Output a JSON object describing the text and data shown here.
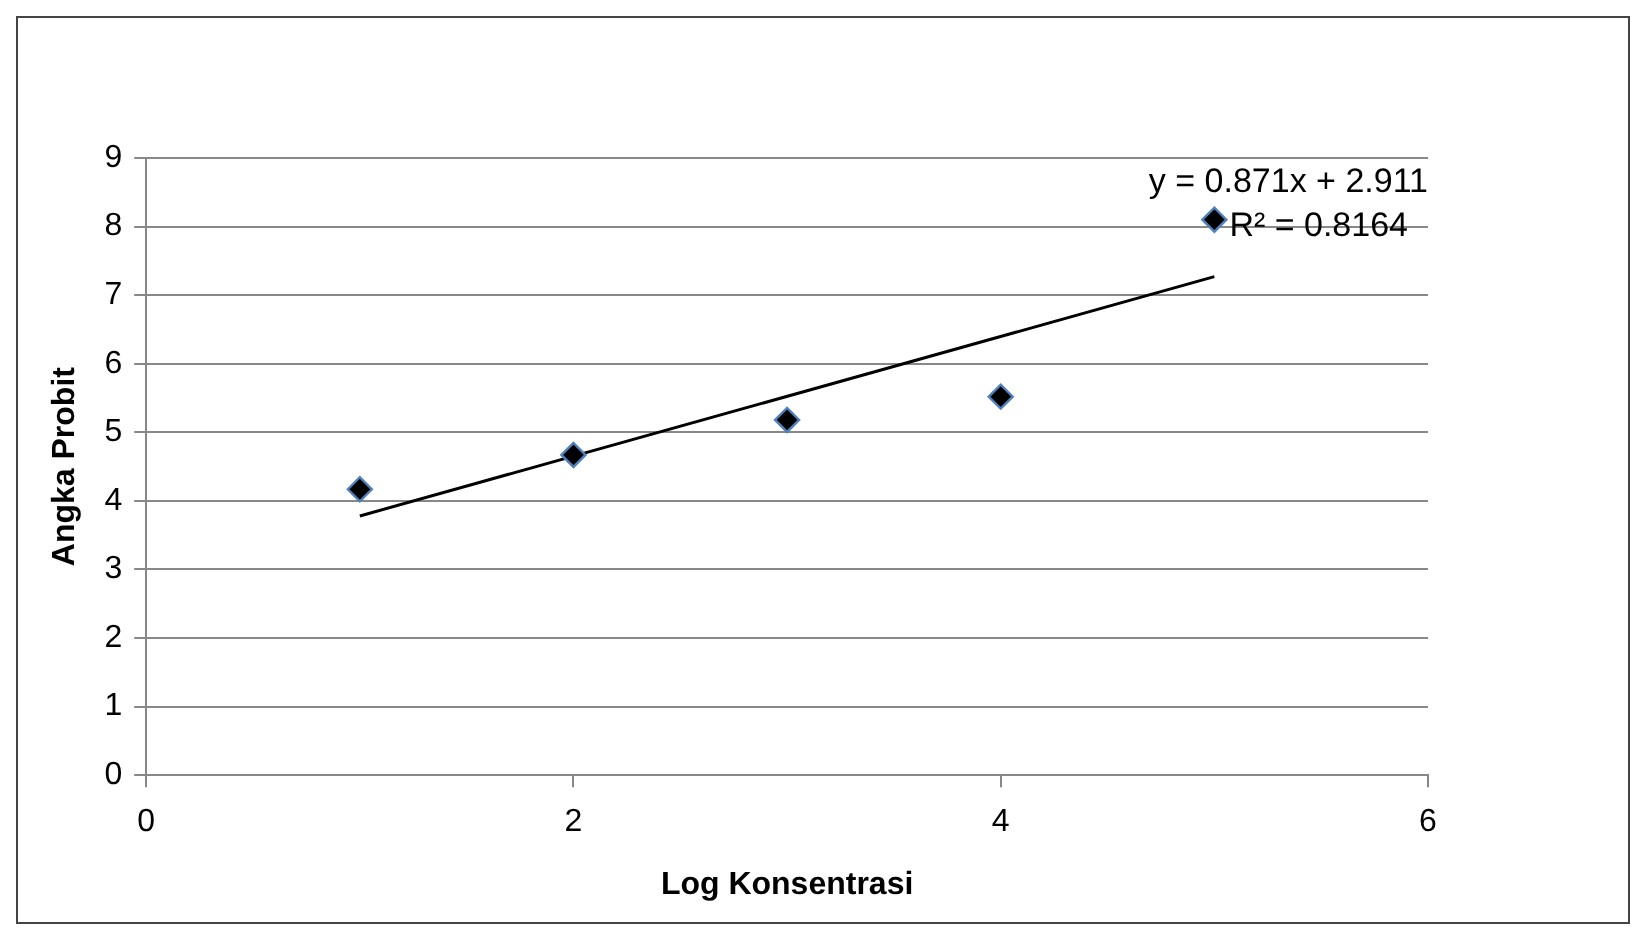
{
  "chart_data": {
    "type": "scatter",
    "xlabel": "Log Konsentrasi",
    "ylabel": "Angka Probit",
    "series": [
      {
        "type": "scatter",
        "color": "#000000",
        "x": [
          1,
          2,
          3,
          4,
          5
        ],
        "values": [
          4.17,
          4.67,
          5.18,
          5.52,
          8.1
        ]
      },
      {
        "type": "line",
        "color": "#000000",
        "x": [
          1,
          5
        ],
        "values": [
          3.78,
          7.27
        ],
        "marker": "none"
      }
    ],
    "xlim": [
      0,
      6
    ],
    "xticks": [
      0,
      2,
      4,
      6
    ],
    "ylim": [
      0,
      9
    ],
    "yticks": [
      0,
      1,
      2,
      3,
      4,
      5,
      6,
      7,
      8,
      9
    ],
    "grid": "y",
    "legend": false,
    "marker": "diamond",
    "annotations": [
      "y = 0.871x + 2.911",
      "R² = 0.8164"
    ]
  }
}
